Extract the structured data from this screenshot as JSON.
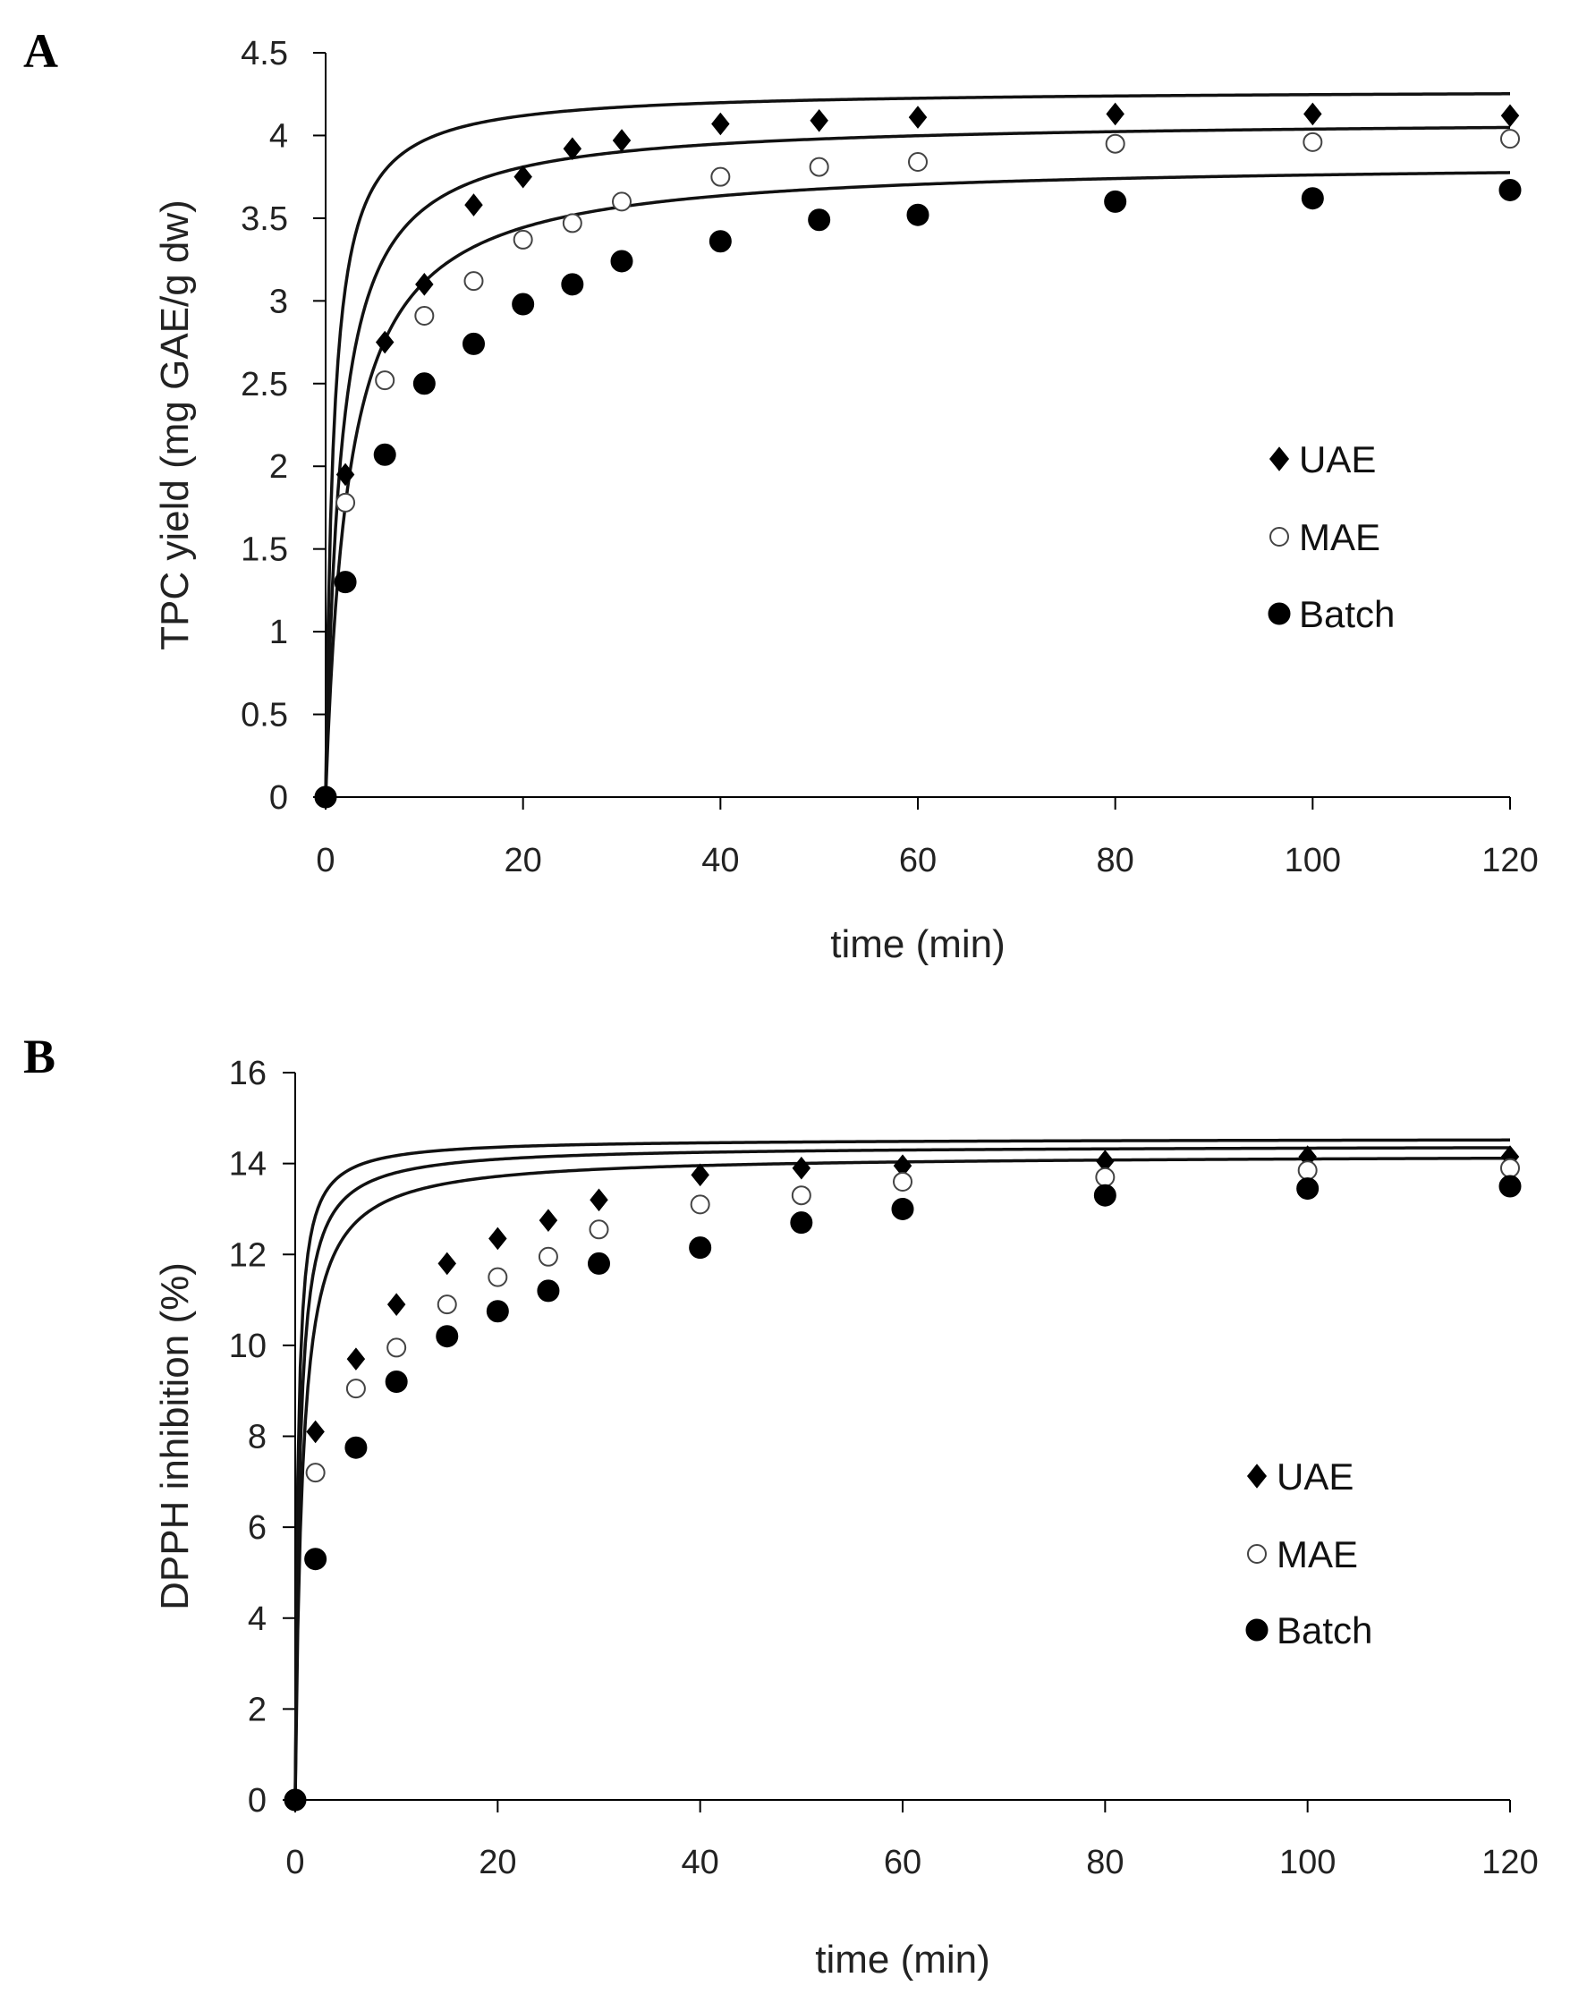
{
  "panels": [
    {
      "letter": "A"
    },
    {
      "letter": "B"
    }
  ],
  "chart_data": [
    {
      "type": "scatter",
      "title": "",
      "xlabel": "time (min)",
      "ylabel": "TPC yield (mg GAE/g dw)",
      "xlim": [
        0,
        120
      ],
      "ylim": [
        0,
        4.5
      ],
      "xticks": [
        0,
        20,
        40,
        60,
        80,
        100,
        120
      ],
      "yticks": [
        0,
        0.5,
        1,
        1.5,
        2,
        2.5,
        3,
        3.5,
        4,
        4.5
      ],
      "ytick_labels": [
        "0",
        "0.5",
        "1",
        "1.5",
        "2",
        "2.5",
        "3",
        "3.5",
        "4",
        "4.5"
      ],
      "legend_position": "right",
      "fit_lines": true,
      "series": [
        {
          "name": "UAE",
          "marker": "diamond",
          "x": [
            0,
            2,
            6,
            10,
            15,
            20,
            25,
            30,
            40,
            50,
            60,
            80,
            100,
            120
          ],
          "y": [
            0,
            1.95,
            2.75,
            3.1,
            3.58,
            3.75,
            3.92,
            3.97,
            4.07,
            4.09,
            4.11,
            4.13,
            4.13,
            4.12
          ],
          "fit": {
            "qmax": 4.28,
            "k": 0.3
          }
        },
        {
          "name": "MAE",
          "marker": "open-circle",
          "x": [
            0,
            2,
            6,
            10,
            15,
            20,
            25,
            30,
            40,
            50,
            60,
            80,
            100,
            120
          ],
          "y": [
            0,
            1.78,
            2.52,
            2.91,
            3.12,
            3.37,
            3.47,
            3.6,
            3.75,
            3.81,
            3.84,
            3.95,
            3.96,
            3.98
          ],
          "fit": {
            "qmax": 4.1,
            "k": 0.16
          }
        },
        {
          "name": "Batch",
          "marker": "filled-circle",
          "x": [
            0,
            2,
            6,
            10,
            15,
            20,
            25,
            30,
            40,
            50,
            60,
            80,
            100,
            120
          ],
          "y": [
            0,
            1.3,
            2.07,
            2.5,
            2.74,
            2.98,
            3.1,
            3.24,
            3.36,
            3.49,
            3.52,
            3.6,
            3.62,
            3.67
          ],
          "fit": {
            "qmax": 3.85,
            "k": 0.11
          }
        }
      ]
    },
    {
      "type": "scatter",
      "title": "",
      "xlabel": "time (min)",
      "ylabel": "DPPH inhibition (%)",
      "xlim": [
        0,
        120
      ],
      "ylim": [
        0,
        16
      ],
      "xticks": [
        0,
        20,
        40,
        60,
        80,
        100,
        120
      ],
      "yticks": [
        0,
        2,
        4,
        6,
        8,
        10,
        12,
        14,
        16
      ],
      "ytick_labels": [
        "0",
        "2",
        "4",
        "6",
        "8",
        "10",
        "12",
        "14",
        "16"
      ],
      "legend_position": "right",
      "fit_lines": true,
      "series": [
        {
          "name": "UAE",
          "marker": "diamond",
          "x": [
            0,
            2,
            6,
            10,
            15,
            20,
            25,
            30,
            40,
            50,
            60,
            80,
            100,
            120
          ],
          "y": [
            0,
            8.1,
            9.7,
            10.9,
            11.8,
            12.35,
            12.75,
            13.2,
            13.75,
            13.9,
            13.95,
            14.05,
            14.15,
            14.15
          ],
          "fit": {
            "qmax": 14.55,
            "k": 0.26
          }
        },
        {
          "name": "MAE",
          "marker": "open-circle",
          "x": [
            0,
            2,
            6,
            10,
            15,
            20,
            25,
            30,
            40,
            50,
            60,
            80,
            100,
            120
          ],
          "y": [
            0,
            7.2,
            9.05,
            9.95,
            10.9,
            11.5,
            11.95,
            12.55,
            13.1,
            13.3,
            13.6,
            13.7,
            13.85,
            13.9
          ],
          "fit": {
            "qmax": 14.4,
            "k": 0.16
          }
        },
        {
          "name": "Batch",
          "marker": "filled-circle",
          "x": [
            0,
            2,
            6,
            10,
            15,
            20,
            25,
            30,
            40,
            50,
            60,
            80,
            100,
            120
          ],
          "y": [
            0,
            5.3,
            7.75,
            9.2,
            10.2,
            10.75,
            11.2,
            11.8,
            12.15,
            12.7,
            13.0,
            13.3,
            13.45,
            13.5
          ],
          "fit": {
            "qmax": 14.2,
            "k": 0.1
          }
        }
      ]
    }
  ]
}
